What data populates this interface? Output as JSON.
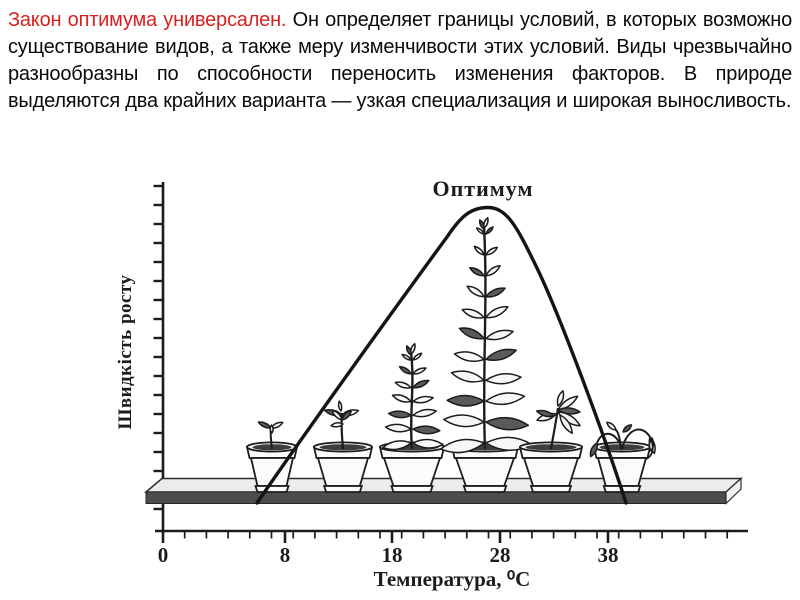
{
  "slide": {
    "background": "#ffffff",
    "text_color": "#0a0a0a",
    "accent_color": "#d92121",
    "paragraph": {
      "lead": "Закон оптимума универсален.",
      "rest": "Он определяет границы условий, в которых возможно существование видов, а также меру изменчивости этих условий. Виды чрезвычайно разнообразны по способности переносить изменения факторов. В природе выделяются два крайних варианта — узкая специализация и широкая выносливость."
    }
  },
  "figure": {
    "title": "Оптимум",
    "y_axis_label": "Швидкість росту",
    "x_axis_label": "Температура, ⁰С",
    "x_ticks": [
      "0",
      "8",
      "18",
      "28",
      "38"
    ],
    "ink_color": "#1c1c1c"
  },
  "chart_data": {
    "type": "line",
    "title": "Оптимум",
    "xlabel": "Температура, ⁰С",
    "ylabel": "Швидкість росту",
    "x_tick_labels": [
      0,
      8,
      18,
      28,
      38
    ],
    "xlim": [
      0,
      48
    ],
    "ylim": [
      0,
      1
    ],
    "grid": false,
    "legend": false,
    "series": [
      {
        "name": "tolerance-curve",
        "shape": "bell curve with rounded flat peak",
        "points": [
          [
            7,
            0
          ],
          [
            12,
            0.3
          ],
          [
            17,
            0.6
          ],
          [
            22,
            0.86
          ],
          [
            25,
            0.98
          ],
          [
            27,
            1.0
          ],
          [
            29,
            0.97
          ],
          [
            32,
            0.8
          ],
          [
            35,
            0.5
          ],
          [
            37,
            0.2
          ],
          [
            38.5,
            0
          ]
        ]
      }
    ],
    "annotations": [
      {
        "text": "Оптимум",
        "x": 27,
        "position": "above curve peak"
      }
    ],
    "pictograms": [
      {
        "temperature": 8,
        "plant": "tiny sprout in pot"
      },
      {
        "temperature": 13,
        "plant": "small seedling in pot"
      },
      {
        "temperature": 20,
        "plant": "medium bushy plant in pot"
      },
      {
        "temperature": 27,
        "plant": "tall vigorous plant at optimum"
      },
      {
        "temperature": 33,
        "plant": "smaller declining plant"
      },
      {
        "temperature": 39,
        "plant": "wilted drooping plant"
      }
    ]
  }
}
